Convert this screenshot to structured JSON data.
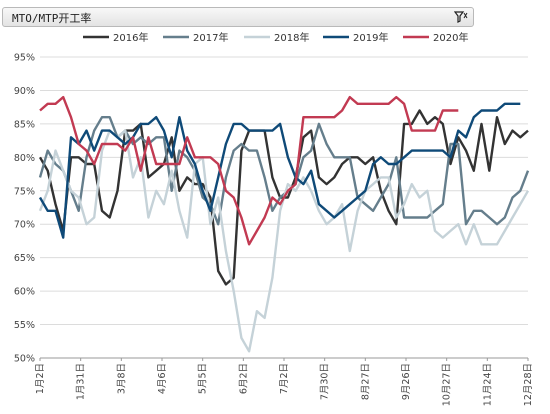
{
  "header": {
    "title": "MTO/MTP开工率",
    "filter_icon": "filter-icon"
  },
  "chart_data": {
    "type": "line",
    "title": "",
    "xlabel": "",
    "ylabel": "",
    "ylim": [
      50,
      95
    ],
    "yticks": [
      "50%",
      "55%",
      "60%",
      "65%",
      "70%",
      "75%",
      "80%",
      "85%",
      "90%",
      "95%"
    ],
    "xticks": [
      "1月2日",
      "1月31日",
      "3月8日",
      "4月6日",
      "5月5日",
      "6月2日",
      "7月2日",
      "7月30日",
      "8月27日",
      "9月26日",
      "10月27日",
      "11月24日",
      "12月28日"
    ],
    "grid": "horizontal",
    "legend_position": "top",
    "series": [
      {
        "name": "2016年",
        "color": "#333333",
        "values": [
          80,
          78,
          73,
          69,
          80,
          80,
          79,
          79,
          72,
          71,
          75,
          84,
          84,
          85,
          77,
          78,
          79,
          83,
          75,
          77,
          76,
          76,
          74,
          63,
          61,
          62,
          81,
          84,
          84,
          84,
          77,
          74,
          74,
          77,
          83,
          84,
          77,
          76,
          77,
          79,
          80,
          80,
          79,
          80,
          75,
          72,
          70,
          85,
          85,
          87,
          85,
          86,
          85,
          79,
          83,
          81,
          78,
          85,
          78,
          86,
          82,
          84,
          83,
          84
        ]
      },
      {
        "name": "2017年",
        "color": "#657e8c",
        "values": [
          77,
          81,
          79,
          78,
          75,
          72,
          80,
          84,
          86,
          86,
          83,
          84,
          82,
          83,
          82,
          83,
          83,
          75,
          81,
          80,
          78,
          74,
          73,
          70,
          77,
          81,
          82,
          81,
          81,
          77,
          72,
          74,
          75,
          76,
          80,
          81,
          85,
          82,
          80,
          80,
          80,
          74,
          73,
          72,
          74,
          76,
          80,
          71,
          71,
          71,
          71,
          72,
          73,
          82,
          82,
          70,
          72,
          72,
          71,
          70,
          71,
          74,
          75,
          78
        ]
      },
      {
        "name": "2018年",
        "color": "#c5d2d8",
        "values": [
          72,
          75,
          81,
          78,
          75,
          74,
          70,
          71,
          81,
          84,
          83,
          84,
          77,
          80,
          71,
          75,
          73,
          78,
          72,
          68,
          79,
          80,
          70,
          74,
          66,
          60,
          53,
          51,
          57,
          56,
          62,
          72,
          76,
          75,
          77,
          75,
          72,
          70,
          71,
          73,
          66,
          72,
          75,
          76,
          77,
          77,
          71,
          73,
          76,
          74,
          75,
          69,
          68,
          69,
          70,
          67,
          70,
          67,
          67,
          67,
          69,
          71,
          73,
          75
        ]
      },
      {
        "name": "2019年",
        "color": "#0f4a78",
        "values": [
          74,
          72,
          72,
          68,
          83,
          82,
          84,
          81,
          84,
          84,
          83,
          82,
          83,
          85,
          85,
          86,
          84,
          80,
          86,
          81,
          79,
          75,
          72,
          77,
          82,
          85,
          85,
          84,
          84,
          84,
          84,
          85,
          80,
          77,
          76,
          78,
          73,
          72,
          71,
          72,
          73,
          74,
          75,
          79,
          80,
          79,
          79,
          80,
          81,
          81,
          81,
          81,
          81,
          80,
          84,
          83,
          86,
          87,
          87,
          87,
          88,
          88,
          88
        ]
      },
      {
        "name": "2020年",
        "color": "#c23a52",
        "values": [
          87,
          88,
          88,
          89,
          86,
          82,
          81,
          79,
          82,
          82,
          82,
          81,
          83,
          78,
          83,
          79,
          79,
          79,
          79,
          83,
          80,
          80,
          80,
          79,
          75,
          74,
          71,
          67,
          69,
          71,
          74,
          73,
          75,
          76,
          86,
          86,
          86,
          86,
          86,
          87,
          89,
          88,
          88,
          88,
          88,
          88,
          89,
          88,
          84,
          84,
          84,
          84,
          87,
          87,
          87
        ]
      }
    ]
  }
}
